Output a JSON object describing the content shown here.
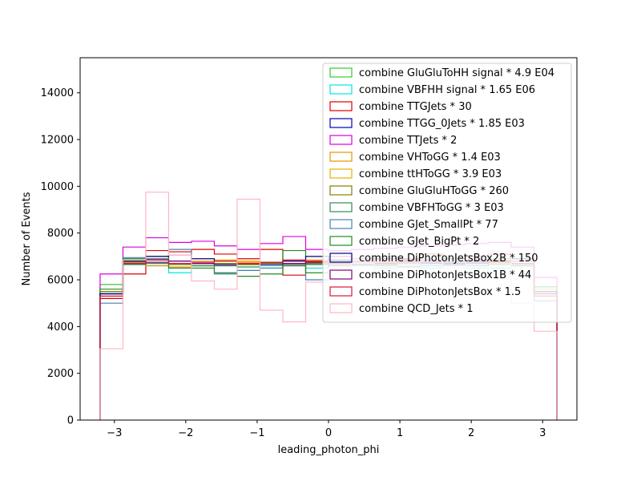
{
  "chart_data": {
    "type": "step-histogram",
    "xlabel": "leading_photon_phi",
    "ylabel": "Number of Events",
    "xlim": [
      -3.48,
      3.48
    ],
    "ylim": [
      0,
      15500
    ],
    "x_ticks": [
      -3,
      -2,
      -1,
      0,
      1,
      2,
      3
    ],
    "x_tick_labels": [
      "−3",
      "−2",
      "−1",
      "0",
      "1",
      "2",
      "3"
    ],
    "y_ticks": [
      0,
      2000,
      4000,
      6000,
      8000,
      10000,
      12000,
      14000
    ],
    "y_tick_labels": [
      "0",
      "2000",
      "4000",
      "6000",
      "8000",
      "10000",
      "12000",
      "14000"
    ],
    "bin_edges": [
      -3.2,
      -2.88,
      -2.56,
      -2.24,
      -1.92,
      -1.6,
      -1.28,
      -0.96,
      -0.64,
      -0.32,
      0.0,
      0.32,
      0.64,
      0.96,
      1.28,
      1.6,
      1.92,
      2.24,
      2.56,
      2.88,
      3.2
    ],
    "legend_position": "upper right",
    "series": [
      {
        "name": "combine GluGluToHH signal * 4.9 E04",
        "color": "#33cc33",
        "values": [
          5800,
          6800,
          6900,
          6700,
          6600,
          6700,
          6650,
          6700,
          6800,
          6700,
          6750,
          6700,
          6700,
          6700,
          6700,
          6750,
          6700,
          6700,
          6800,
          5700
        ]
      },
      {
        "name": "combine VBFHH signal * 1.65 E06",
        "color": "#00e6e6",
        "values": [
          5500,
          6700,
          6600,
          6300,
          6500,
          6600,
          6400,
          6600,
          6700,
          6500,
          6600,
          6600,
          6500,
          6600,
          6500,
          6600,
          6500,
          6500,
          6600,
          5500
        ]
      },
      {
        "name": "combine TTGJets * 30",
        "color": "#dd0000",
        "values": [
          5200,
          6250,
          7250,
          7200,
          7300,
          7100,
          6900,
          7300,
          6200,
          6800,
          7000,
          6900,
          7000,
          6900,
          7100,
          6900,
          7000,
          7100,
          6900,
          5300
        ]
      },
      {
        "name": "combine TTGG_0Jets * 1.85 E03",
        "color": "#0000bb",
        "values": [
          5400,
          6700,
          6850,
          6800,
          6700,
          6650,
          6700,
          6750,
          6800,
          6750,
          6700,
          6750,
          6700,
          6800,
          6750,
          6700,
          6750,
          6800,
          6700,
          5500
        ]
      },
      {
        "name": "combine TTJets * 2",
        "color": "#dd00dd",
        "values": [
          6250,
          7400,
          7800,
          7600,
          7650,
          7450,
          7300,
          7550,
          7850,
          7300,
          7250,
          7300,
          7350,
          7400,
          7450,
          7500,
          7550,
          7600,
          7400,
          6100
        ]
      },
      {
        "name": "combine VHToGG * 1.4 E03",
        "color": "#e69500",
        "values": [
          5300,
          6700,
          6600,
          6550,
          6600,
          6700,
          6750,
          6650,
          6600,
          6700,
          6650,
          6700,
          6650,
          6600,
          6700,
          6650,
          6600,
          6700,
          6650,
          5400
        ]
      },
      {
        "name": "combine ttHToGG * 3.9 E03",
        "color": "#e6b000",
        "values": [
          5500,
          6800,
          6900,
          6700,
          6800,
          6850,
          6800,
          6750,
          6800,
          6850,
          6800,
          6750,
          6800,
          6850,
          6800,
          6750,
          6800,
          6850,
          6800,
          5600
        ]
      },
      {
        "name": "combine GluGluHToGG * 260",
        "color": "#808000",
        "values": [
          5500,
          6750,
          6850,
          6650,
          6700,
          6700,
          6650,
          6700,
          6650,
          6700,
          6750,
          6700,
          6650,
          6700,
          6700,
          6650,
          6700,
          6750,
          6700,
          5500
        ]
      },
      {
        "name": "combine VBFHToGG * 3 E03",
        "color": "#2e8b57",
        "values": [
          5400,
          6650,
          6700,
          6700,
          6600,
          6600,
          6550,
          6500,
          6600,
          6650,
          6600,
          6650,
          6600,
          6550,
          6600,
          6650,
          6600,
          6650,
          6600,
          5400
        ]
      },
      {
        "name": "combine GJet_SmallPt * 77",
        "color": "#4682b4",
        "values": [
          5000,
          6950,
          6900,
          7300,
          6700,
          6250,
          6400,
          6500,
          6600,
          6000,
          6800,
          6900,
          6700,
          6600,
          6800,
          6900,
          6700,
          6800,
          6600,
          5100
        ]
      },
      {
        "name": "combine GJet_BigPt * 2",
        "color": "#228b22",
        "values": [
          5600,
          6900,
          7000,
          6500,
          6500,
          6300,
          6150,
          6250,
          7250,
          6300,
          6800,
          6700,
          6900,
          6600,
          6700,
          6800,
          6700,
          6900,
          6800,
          5700
        ]
      },
      {
        "name": "combine DiPhotonJetsBox2B * 150",
        "color": "#000080",
        "values": [
          5400,
          6800,
          7000,
          7050,
          6900,
          6800,
          6700,
          6750,
          6800,
          7000,
          6850,
          6800,
          6900,
          6850,
          6800,
          6900,
          6850,
          6800,
          6900,
          5500
        ]
      },
      {
        "name": "combine DiPhotonJetsBox1B * 44",
        "color": "#800080",
        "values": [
          5300,
          6700,
          6750,
          6800,
          6700,
          6650,
          6700,
          6650,
          6700,
          6750,
          6700,
          6650,
          6700,
          6750,
          6700,
          6650,
          6700,
          6750,
          6700,
          5400
        ]
      },
      {
        "name": "combine DiPhotonJetsBox * 1.5",
        "color": "#dc143c",
        "values": [
          5300,
          6700,
          6850,
          6700,
          6750,
          6800,
          6700,
          6750,
          6850,
          6800,
          6750,
          6800,
          6750,
          6800,
          6850,
          6750,
          6800,
          6750,
          6800,
          5300
        ]
      },
      {
        "name": "combine QCD_Jets * 1",
        "color": "#ffb6c1",
        "values": [
          3050,
          6850,
          9750,
          7050,
          5950,
          5600,
          9450,
          4700,
          4200,
          5900,
          6500,
          6700,
          6400,
          6600,
          6800,
          6500,
          6900,
          7200,
          5000,
          3800
        ]
      }
    ]
  }
}
